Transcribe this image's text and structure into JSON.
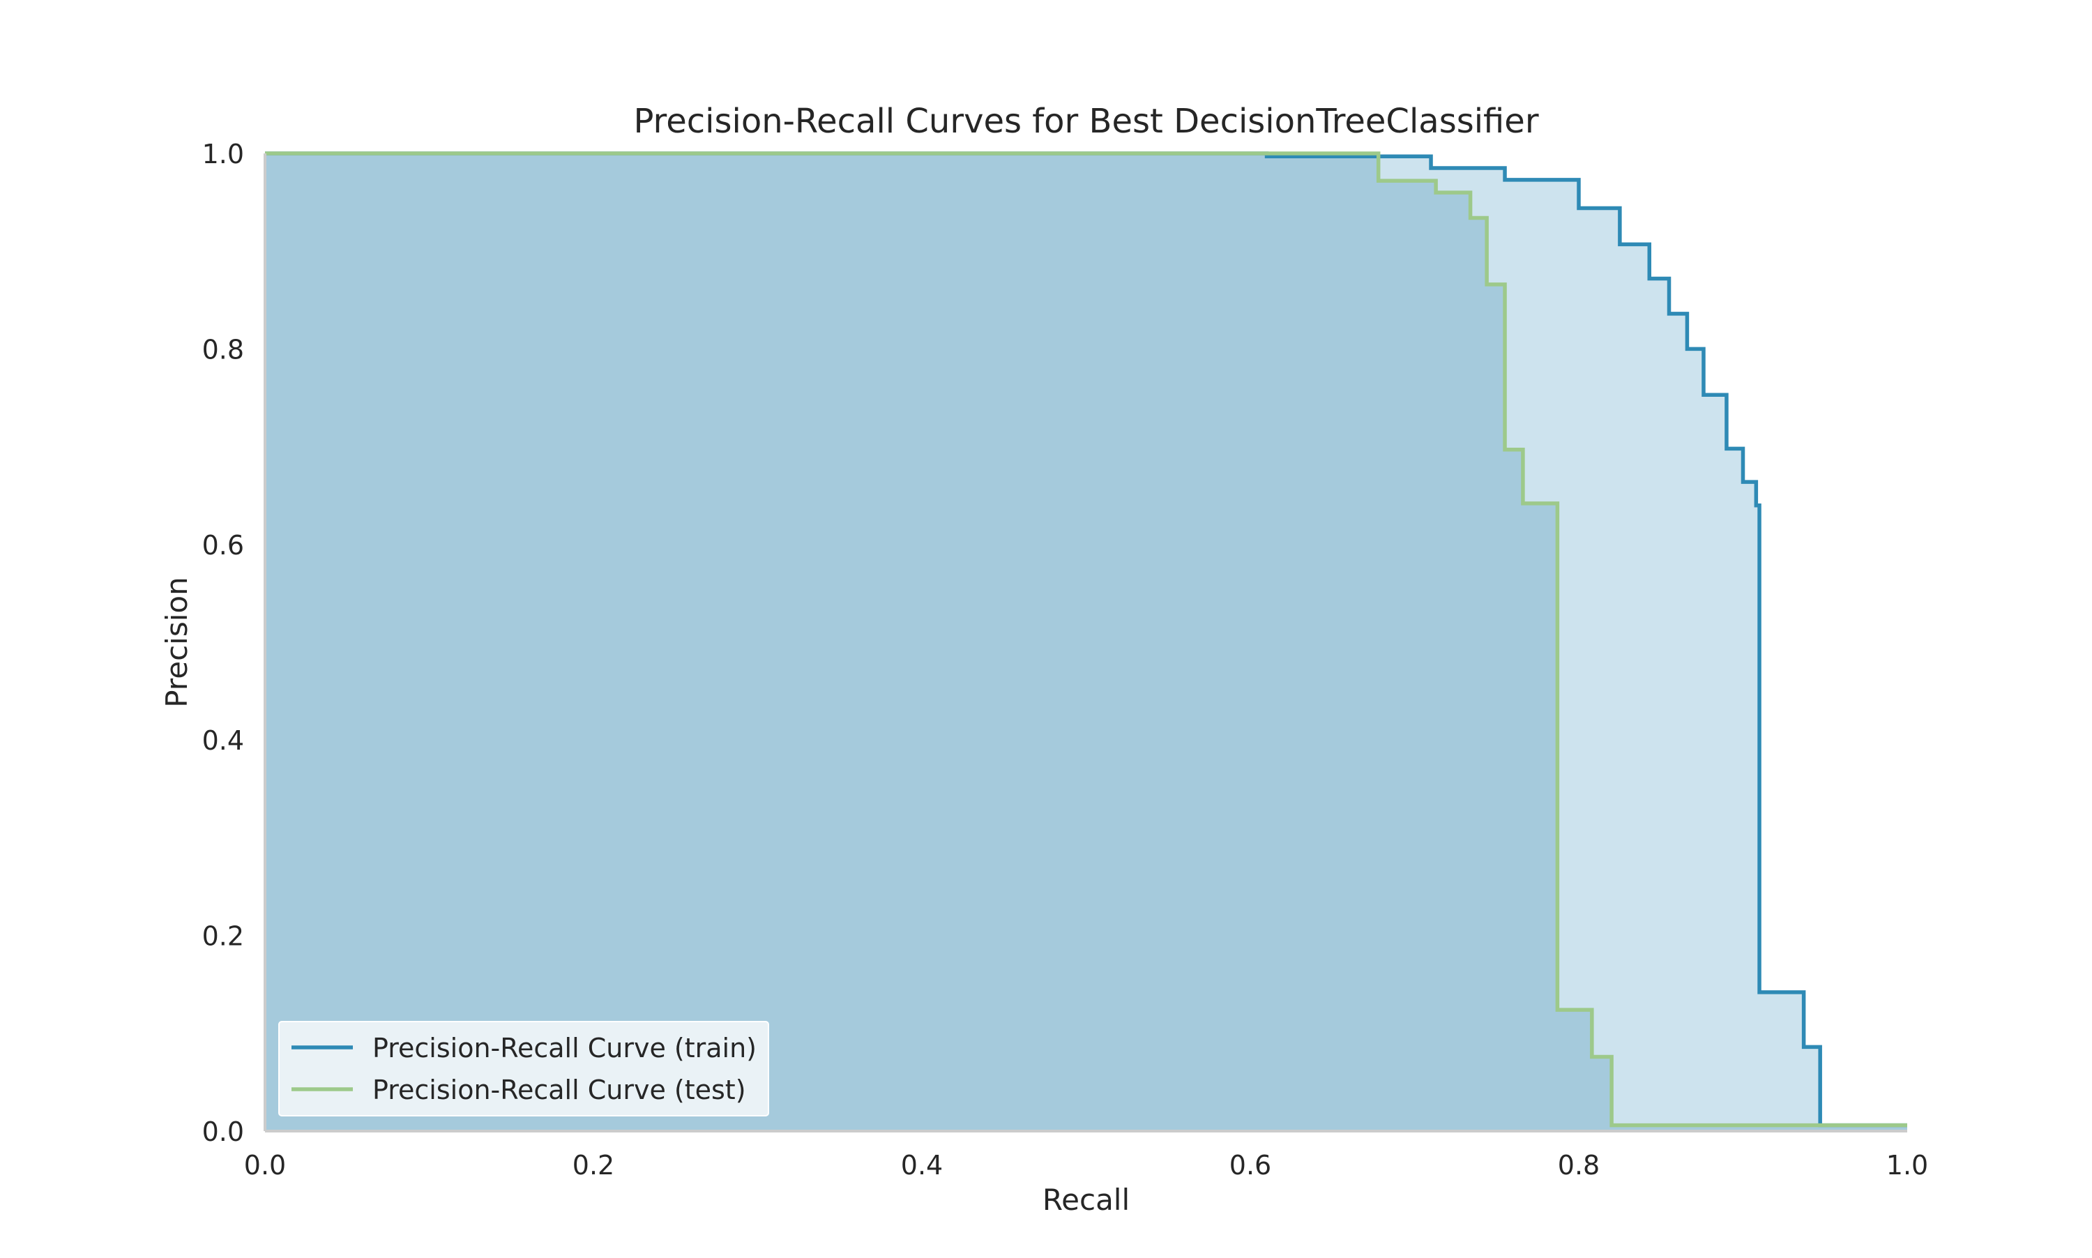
{
  "chart_data": {
    "type": "line",
    "title": "Precision-Recall Curves for Best DecisionTreeClassifier",
    "xlabel": "Recall",
    "ylabel": "Precision",
    "xlim": [
      0.0,
      1.0
    ],
    "ylim": [
      0.0,
      1.0
    ],
    "xticks": [
      "0.0",
      "0.2",
      "0.4",
      "0.6",
      "0.8",
      "1.0"
    ],
    "yticks": [
      "0.0",
      "0.2",
      "0.4",
      "0.6",
      "0.8",
      "1.0"
    ],
    "grid": false,
    "legend_position": "lower-left",
    "filled": true,
    "step": "post",
    "series": [
      {
        "name": "Precision-Recall Curve (train)",
        "color": "#2e8ab5",
        "fill_color": "#cde3ee",
        "x": [
          0.0,
          0.61,
          0.71,
          0.755,
          0.8,
          0.825,
          0.843,
          0.855,
          0.866,
          0.876,
          0.89,
          0.9,
          0.908,
          0.91,
          0.937,
          0.947,
          1.0
        ],
        "y": [
          1.0,
          0.997,
          0.985,
          0.973,
          0.944,
          0.907,
          0.872,
          0.836,
          0.8,
          0.753,
          0.698,
          0.664,
          0.64,
          0.142,
          0.086,
          0.006,
          0.006
        ]
      },
      {
        "name": "Precision-Recall Curve (test)",
        "color": "#9dc98a",
        "fill_color": "#a5cadc",
        "x": [
          0.0,
          0.678,
          0.713,
          0.734,
          0.744,
          0.755,
          0.766,
          0.787,
          0.808,
          0.82,
          1.0
        ],
        "y": [
          1.0,
          0.972,
          0.96,
          0.934,
          0.866,
          0.697,
          0.642,
          0.124,
          0.076,
          0.006,
          0.006
        ]
      }
    ]
  }
}
